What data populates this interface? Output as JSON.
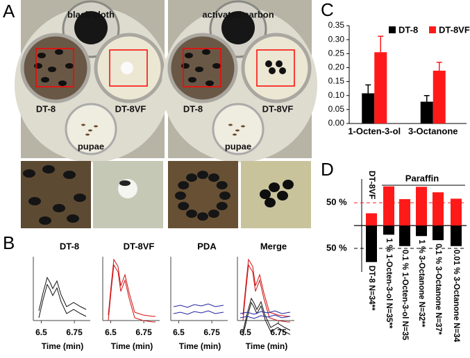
{
  "panel_labels": [
    "A",
    "B",
    "C",
    "D"
  ],
  "photos": [
    {
      "title": "black cloth",
      "left": "DT-8",
      "right": "DT-8VF",
      "bottom": "pupae"
    },
    {
      "title": "activated carbon",
      "left": "DT-8",
      "right": "DT-8VF",
      "bottom": "pupae"
    }
  ],
  "chromatograms": {
    "titles": [
      "DT-8",
      "DT-8VF",
      "PDA",
      "Merge"
    ],
    "xlabel": "Time (min)",
    "xlim": [
      6.44,
      6.87
    ],
    "xticks": [
      6.5,
      6.75
    ]
  },
  "chart_data": [
    {
      "type": "bar",
      "categories": [
        "1-Octen-3-ol",
        "3-Octanone"
      ],
      "series": [
        {
          "name": "DT-8",
          "color": "#000000",
          "values": [
            0.108,
            0.078
          ],
          "errors": [
            0.03,
            0.022
          ]
        },
        {
          "name": "DT-8VF",
          "color": "#ff1a1a",
          "values": [
            0.255,
            0.189
          ],
          "errors": [
            0.057,
            0.03
          ]
        }
      ],
      "ylim": [
        0,
        0.35
      ],
      "yticks": [
        {
          "value": 0,
          "label": "0.00"
        },
        0.05,
        {
          "value": 0.1,
          "label": "0.10"
        },
        0.15,
        {
          "value": 0.2,
          "label": "0.20"
        },
        0.25,
        {
          "value": 0.3,
          "label": "0.30"
        },
        0.35
      ],
      "legend": "top-right"
    },
    {
      "type": "diverging-bar",
      "control_label": "DT-8VF",
      "group_label": "Paraffin",
      "categories": [
        "DT-8 N=34**",
        "1 % 1-Octen-3-ol N=35**",
        "0.1 % 1-Octen-3-ol N=35",
        "1 % 3-Octanone N=32**",
        "0.1 % 3-Octanone N=37*",
        "0.01 % 3-Octanone N=34"
      ],
      "series": [
        {
          "color": "#ff1a1a",
          "values": [
            27,
            86,
            58,
            85,
            73,
            59
          ]
        },
        {
          "color": "#000000",
          "direction": "down",
          "values": [
            80,
            20,
            45,
            23,
            32,
            45
          ]
        }
      ],
      "ylim": [
        -85,
        90
      ],
      "yticks": [
        {
          "value": 50,
          "label": "50 %"
        },
        {
          "value": -50,
          "label": "50 %"
        }
      ]
    }
  ]
}
